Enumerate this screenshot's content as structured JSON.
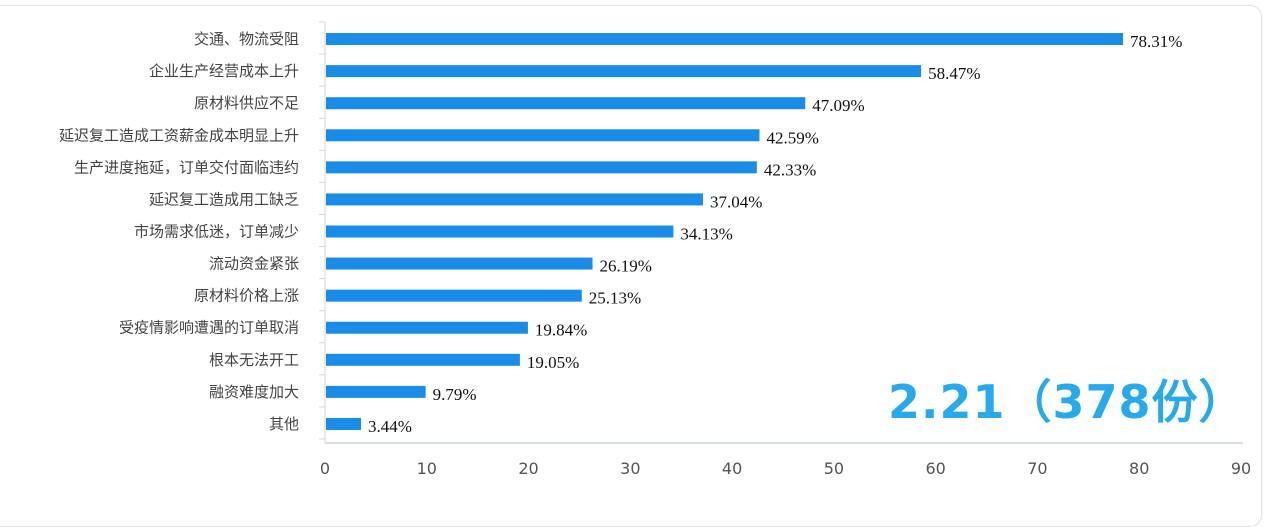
{
  "chart_data": {
    "type": "bar",
    "orientation": "horizontal",
    "categories": [
      "交通、物流受阻",
      "企业生产经营成本上升",
      "原材料供应不足",
      "延迟复工造成工资薪金成本明显上升",
      "生产进度拖延，订单交付面临违约",
      "延迟复工造成用工缺乏",
      "市场需求低迷，订单减少",
      "流动资金紧张",
      "原材料价格上涨",
      "受疫情影响遭遇的订单取消",
      "根本无法开工",
      "融资难度加大",
      "其他"
    ],
    "values": [
      78.31,
      58.47,
      47.09,
      42.59,
      42.33,
      37.04,
      34.13,
      26.19,
      25.13,
      19.84,
      19.05,
      9.79,
      3.44
    ],
    "data_labels": [
      "78.31%",
      "58.47%",
      "47.09%",
      "42.59%",
      "42.33%",
      "37.04%",
      "34.13%",
      "26.19%",
      "25.13%",
      "19.84%",
      "19.05%",
      "9.79%",
      "3.44%"
    ],
    "xlim": [
      0,
      90
    ],
    "xticks": [
      "0",
      "10",
      "20",
      "30",
      "40",
      "50",
      "60",
      "70",
      "80",
      "90"
    ],
    "grid": false,
    "bar_color": "#1a8ce8",
    "title": "",
    "xlabel": "",
    "ylabel": ""
  },
  "annotation": {
    "text": "2.21（378份）",
    "color": "#27a9ec"
  }
}
